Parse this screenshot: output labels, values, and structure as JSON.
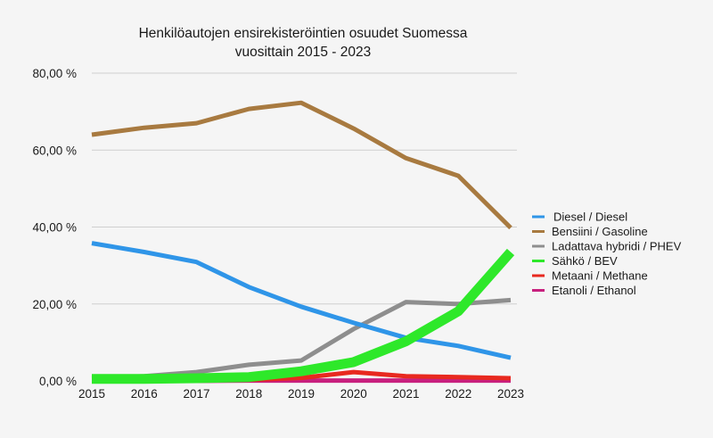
{
  "chart_data": {
    "type": "line",
    "title": "Henkilöautojen ensirekisteröintien osuudet Suomessa",
    "subtitle": "vuosittain 2015 - 2023",
    "xlabel": "",
    "ylabel": "",
    "x": [
      "2015",
      "2016",
      "2017",
      "2018",
      "2019",
      "2020",
      "2021",
      "2022",
      "2023"
    ],
    "ylim": [
      0,
      80
    ],
    "yticks": [
      0,
      20,
      40,
      60,
      80
    ],
    "ytick_labels": [
      "0,00 %",
      "20,00 %",
      "40,00 %",
      "60,00 %",
      "80,00 %"
    ],
    "grid": true,
    "legend_position": "right",
    "series": [
      {
        "name": "Diesel / Diesel",
        "color": "#2f95e8",
        "width": "normal",
        "values": [
          35.8,
          33.5,
          30.9,
          24.4,
          19.3,
          15.1,
          11.2,
          9.1,
          6.0
        ]
      },
      {
        "name": "Bensiini / Gasoline",
        "color": "#a87a40",
        "width": "normal",
        "values": [
          64.0,
          65.8,
          67.0,
          70.7,
          72.3,
          65.6,
          57.9,
          53.3,
          39.8
        ]
      },
      {
        "name": "Ladattava hybridi / PHEV",
        "color": "#8e8e8e",
        "width": "normal",
        "values": [
          0.7,
          1.2,
          2.3,
          4.2,
          5.3,
          13.5,
          20.5,
          20.0,
          21.0
        ]
      },
      {
        "name": "Sähkö / BEV",
        "color": "#2ee82a",
        "width": "thick",
        "values": [
          0.5,
          0.5,
          0.7,
          1.0,
          2.5,
          4.9,
          10.3,
          18.1,
          33.5
        ]
      },
      {
        "name": "Metaani / Methane",
        "color": "#e8291f",
        "width": "normal",
        "values": [
          0.1,
          0.1,
          0.2,
          0.3,
          0.8,
          2.3,
          1.2,
          1.0,
          0.7
        ]
      },
      {
        "name": "Etanoli / Ethanol",
        "color": "#c8207e",
        "width": "normal",
        "values": [
          0.0,
          0.0,
          0.0,
          0.1,
          0.1,
          0.1,
          0.1,
          0.1,
          0.1
        ]
      }
    ]
  }
}
